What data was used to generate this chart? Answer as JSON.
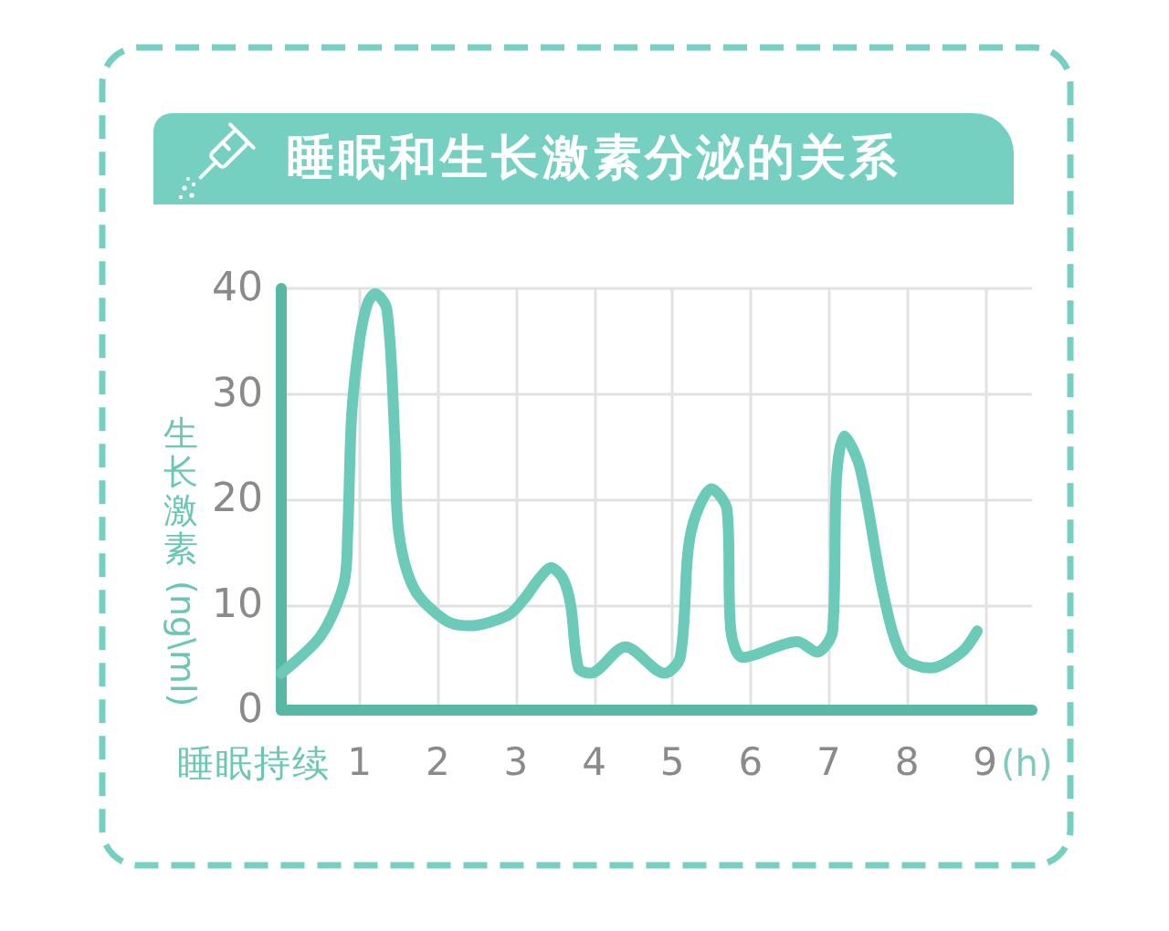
{
  "chart_data": {
    "type": "line",
    "title": "睡眠和生长激素分泌的关系",
    "xlabel": "睡眠持续",
    "ylabel": "生长激素 (ng\\ml)",
    "annotations": [
      "(h)"
    ],
    "x": [
      0,
      0.5,
      0.8,
      0.85,
      0.9,
      1.0,
      1.1,
      1.2,
      1.35,
      1.45,
      1.5,
      1.7,
      2.1,
      2.4,
      2.9,
      3.1,
      3.3,
      3.45,
      3.6,
      3.7,
      3.8,
      3.95,
      4.4,
      4.9,
      5.1,
      5.2,
      5.3,
      5.5,
      5.7,
      5.75,
      5.9,
      6.6,
      6.85,
      7.05,
      7.1,
      7.2,
      7.4,
      7.7,
      7.95,
      8.3,
      8.7,
      8.9
    ],
    "series": [
      {
        "color": "#6ccab8",
        "values": [
          3.5,
          7,
          12,
          17,
          28,
          35,
          38.5,
          39.5,
          38,
          26,
          17,
          11.5,
          8.5,
          8,
          9,
          10.5,
          12.5,
          13.5,
          12.5,
          10,
          4,
          3.5,
          6,
          3.5,
          5,
          15,
          18.5,
          21,
          19,
          7.5,
          5,
          6.5,
          5.5,
          7.5,
          22,
          26,
          23,
          11,
          5,
          4,
          5.5,
          7.5
        ]
      }
    ],
    "xlim": [
      0,
      9.6
    ],
    "xticks": [
      1,
      2,
      3,
      4,
      5,
      6,
      7,
      8,
      9
    ],
    "ylim": [
      0,
      40
    ],
    "yticks": [
      0,
      10,
      20,
      30,
      40
    ],
    "grid": true,
    "marker": "none",
    "line_style": "solid"
  }
}
